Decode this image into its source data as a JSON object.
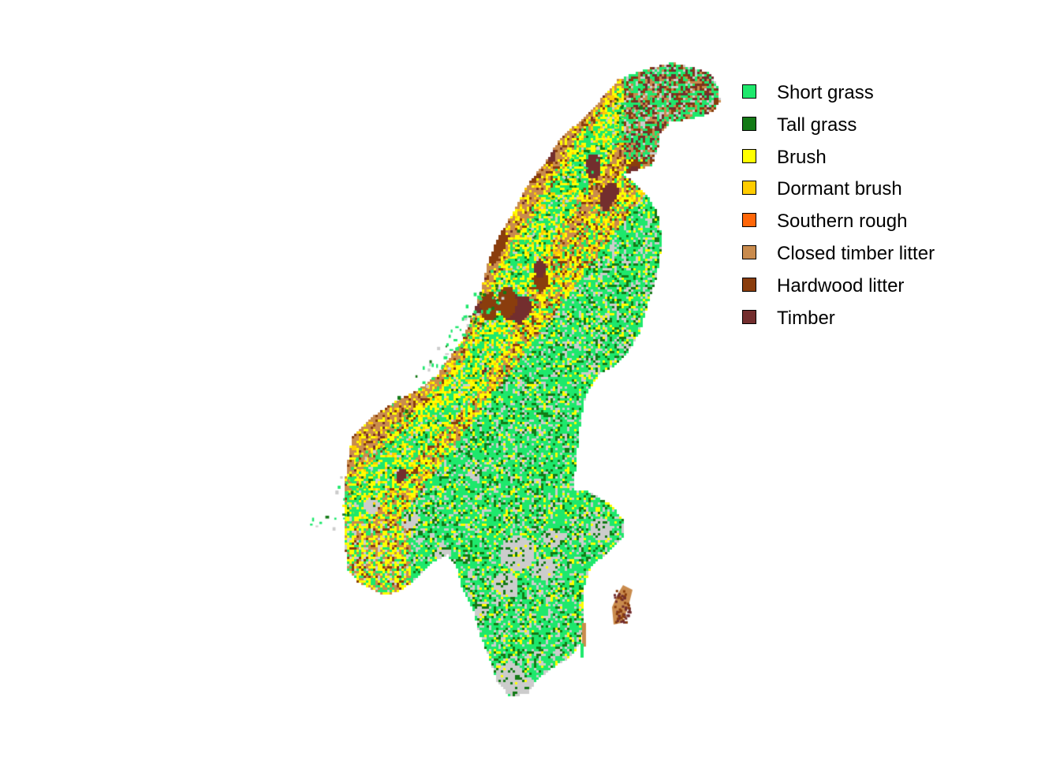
{
  "map": {
    "region": "Scandinavian Peninsula",
    "colors": {
      "no_data": "#cccccc",
      "background": "#ffffff"
    }
  },
  "legend": {
    "items": [
      {
        "label": "Short grass",
        "color": "#1ee86c"
      },
      {
        "label": "Tall grass",
        "color": "#137a16"
      },
      {
        "label": "Brush",
        "color": "#ffff00"
      },
      {
        "label": "Dormant brush",
        "color": "#ffcc00"
      },
      {
        "label": "Southern rough",
        "color": "#ff6608"
      },
      {
        "label": "Closed timber litter",
        "color": "#c98b4d"
      },
      {
        "label": "Hardwood litter",
        "color": "#8a3d0d"
      },
      {
        "label": "Timber",
        "color": "#732e2e"
      }
    ]
  }
}
